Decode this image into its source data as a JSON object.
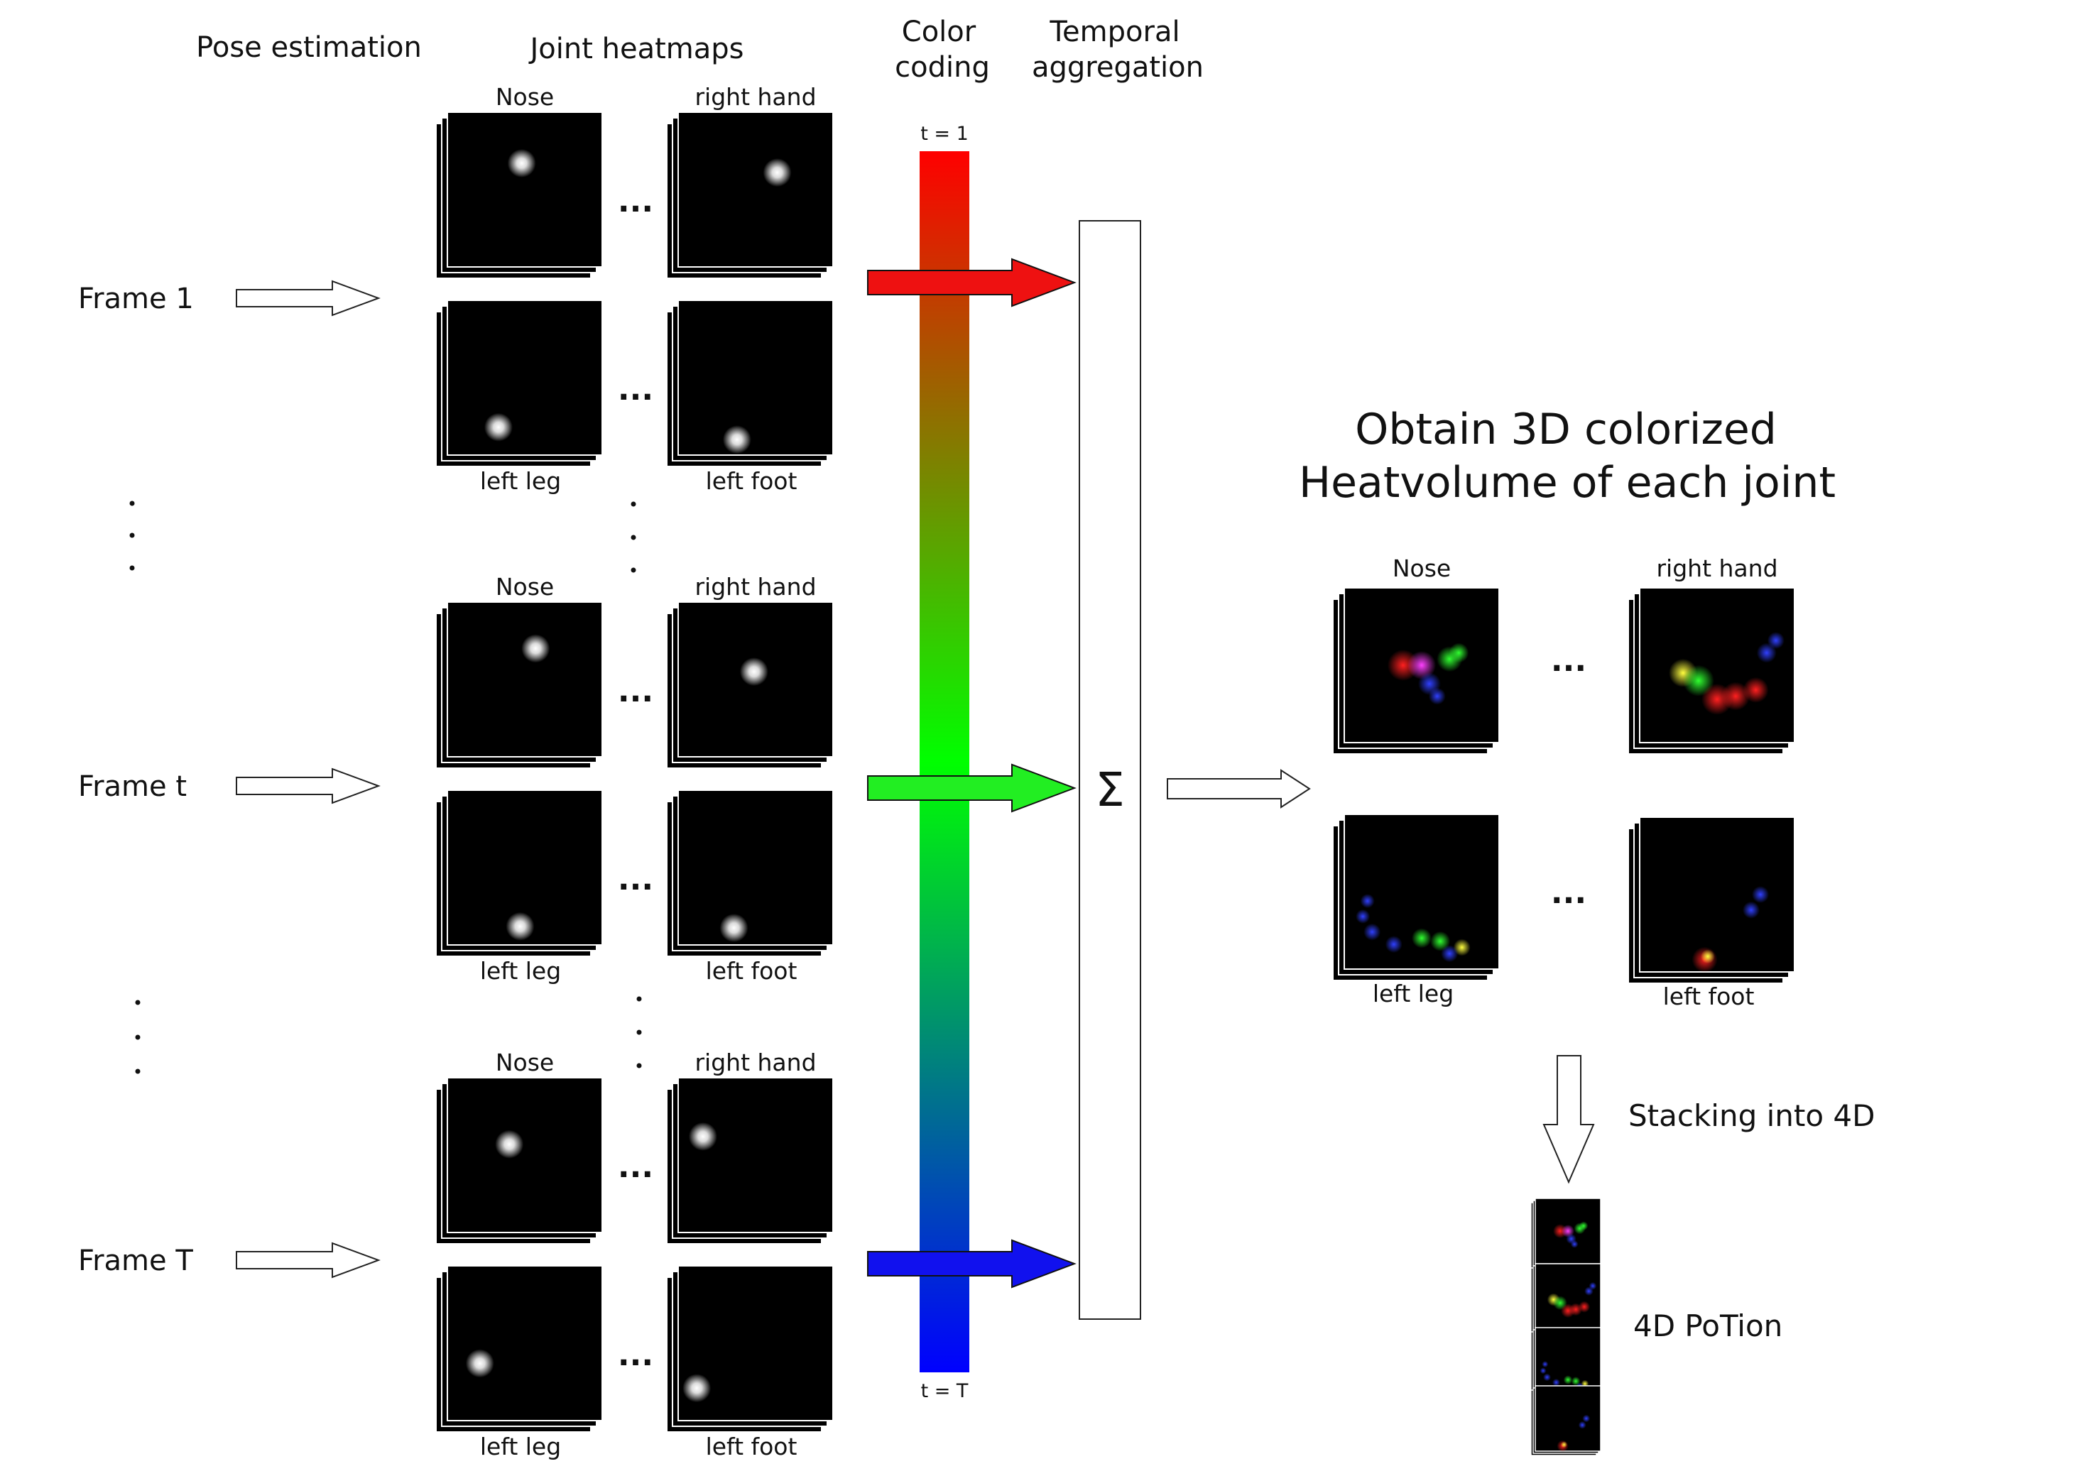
{
  "headers": {
    "pose_estimation": "Pose estimation",
    "joint_heatmaps": "Joint heatmaps",
    "color_coding": [
      "Color",
      "coding"
    ],
    "temporal_aggregation": [
      "Temporal",
      "aggregation"
    ]
  },
  "frames": [
    {
      "label": "Frame 1",
      "maps": {
        "nose": {
          "label": "Nose",
          "blob": [
            0.48,
            0.33
          ]
        },
        "right_hand": {
          "label": "right hand",
          "blob": [
            0.64,
            0.39
          ]
        },
        "left_leg": {
          "label": "left leg",
          "blob": [
            0.33,
            0.82
          ]
        },
        "left_foot": {
          "label": "left foot",
          "blob": [
            0.38,
            0.9
          ]
        }
      },
      "arrow_color": "#ee1111"
    },
    {
      "label": "Frame t",
      "maps": {
        "nose": {
          "label": "Nose",
          "blob": [
            0.57,
            0.3
          ]
        },
        "right_hand": {
          "label": "right hand",
          "blob": [
            0.49,
            0.45
          ]
        },
        "left_leg": {
          "label": "left leg",
          "blob": [
            0.47,
            0.88
          ]
        },
        "left_foot": {
          "label": "left foot",
          "blob": [
            0.36,
            0.89
          ]
        }
      },
      "arrow_color": "#22ee22"
    },
    {
      "label": "Frame T",
      "maps": {
        "nose": {
          "label": "Nose",
          "blob": [
            0.4,
            0.43
          ]
        },
        "right_hand": {
          "label": "right hand",
          "blob": [
            0.16,
            0.38
          ]
        },
        "left_leg": {
          "label": "left leg",
          "blob": [
            0.21,
            0.63
          ]
        },
        "left_foot": {
          "label": "left foot",
          "blob": [
            0.12,
            0.79
          ]
        }
      },
      "arrow_color": "#1111ee"
    }
  ],
  "ellipsis": "...",
  "color_bar": {
    "top_label": "t = 1",
    "bottom_label": "t = T",
    "colors": [
      "#ff0000",
      "#00ff00",
      "#0000ff"
    ]
  },
  "sigma": "Σ",
  "result": {
    "title": [
      "Obtain 3D colorized",
      "Heatvolume of each joint"
    ],
    "maps": {
      "nose": "Nose",
      "right_hand": "right hand",
      "left_leg": "left leg",
      "left_foot": "left foot"
    }
  },
  "stacking_label": "Stacking into 4D",
  "potion_label": "4D PoTion"
}
